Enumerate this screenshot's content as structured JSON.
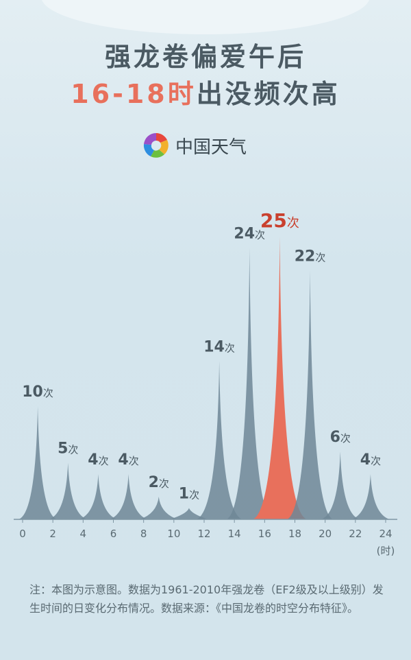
{
  "title": {
    "line1": "强龙卷偏爱午后",
    "line2_highlight": "16-18时",
    "line2_rest": "出没频次高"
  },
  "brand": {
    "name": "中国天气",
    "icon": "swirl-logo-icon"
  },
  "chart_data": {
    "type": "area",
    "x": [
      1,
      3,
      5,
      7,
      9,
      11,
      13,
      15,
      17,
      19,
      21,
      23
    ],
    "values": [
      10,
      5,
      4,
      4,
      2,
      1,
      14,
      24,
      25,
      22,
      6,
      4
    ],
    "unit_suffix": "次",
    "highlight_index": 8,
    "xlabel": "(时)",
    "xticks": [
      "0",
      "2",
      "4",
      "6",
      "8",
      "10",
      "12",
      "14",
      "16",
      "18",
      "20",
      "22",
      "24"
    ],
    "xlim": [
      0,
      24
    ],
    "ylim": [
      0,
      25
    ],
    "grid": false,
    "colors": {
      "normal": "#6f8796",
      "highlight": "#e8705c",
      "label": "#4b5a63",
      "highlight_label": "#c9402e"
    }
  },
  "note": "注：本图为示意图。数据为1961-2010年强龙卷（EF2级及以上级别）发生时间的日变化分布情况。数据来源：《中国龙卷的时空分布特征》。"
}
